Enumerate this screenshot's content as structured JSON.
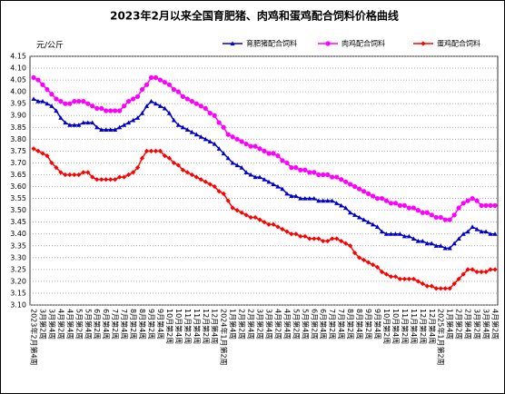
{
  "chart_data": {
    "type": "line",
    "title": "2023年2月以来全国育肥猪、肉鸡和蛋鸡配合饲料价格曲线",
    "y_label": "元/公斤",
    "legend": "top-right",
    "grid": true,
    "ylim": [
      3.1,
      4.15
    ],
    "yticks": [
      {
        "value": 3.1,
        "label": "3.10"
      },
      3.15,
      {
        "value": 3.2,
        "label": "3.20"
      },
      3.25,
      {
        "value": 3.3,
        "label": "3.30"
      },
      3.35,
      {
        "value": 3.4,
        "label": "3.40"
      },
      3.45,
      {
        "value": 3.5,
        "label": "3.50"
      },
      3.55,
      {
        "value": 3.6,
        "label": "3.60"
      },
      3.65,
      {
        "value": 3.7,
        "label": "3.70"
      },
      3.75,
      {
        "value": 3.8,
        "label": "3.80"
      },
      3.85,
      {
        "value": 3.9,
        "label": "3.90"
      },
      3.95,
      {
        "value": 4.0,
        "label": "4.00"
      },
      4.05,
      {
        "value": 4.1,
        "label": "4.10"
      },
      4.15
    ],
    "categories": [
      "2023年2月第4周",
      null,
      "3月第2周",
      null,
      "3月第4周",
      null,
      "4月第2周",
      null,
      "4月第4周",
      null,
      "5月第2周",
      null,
      "5月第4周",
      null,
      "6月第2周",
      null,
      "6月第4周",
      null,
      "7月第2周",
      null,
      "7月第4周",
      null,
      "8月第2周",
      null,
      "8月第4周",
      null,
      "9月第2周",
      null,
      "9月第4周",
      null,
      "10月第2周",
      null,
      "10月第4周",
      null,
      "11月第2周",
      null,
      "11月第4周",
      null,
      "12月第2周",
      null,
      "12月第4周",
      null,
      "2024年1月第2周",
      null,
      "1月第4周",
      null,
      "2月第2周",
      null,
      "2月第4周",
      null,
      "3月第2周",
      null,
      "3月第4周",
      null,
      "4月第2周",
      null,
      "4月第4周",
      null,
      "5月第2周",
      null,
      "5月第4周",
      null,
      "6月第2周",
      null,
      "6月第4周",
      null,
      "7月第2周",
      null,
      "7月第4周",
      null,
      "8月第2周",
      null,
      "8月第4周",
      null,
      "9月第2周",
      null,
      "9月第4周",
      null,
      "10月第2周",
      null,
      "10月第4周",
      null,
      "11月第2周",
      null,
      "11月第4周",
      null,
      "12月第2周",
      null,
      "12月第4周",
      null,
      "2025年1月第2周",
      null,
      "1月第4周",
      null,
      "2月第2周",
      null,
      "2月第4周",
      null,
      "3月第2周",
      null,
      "3月第4周",
      null,
      "4月第2周"
    ],
    "series": [
      {
        "name": "育肥猪配合饲料",
        "color": "#0000cc",
        "marker": "triangle",
        "values": [
          3.97,
          3.96,
          3.96,
          3.95,
          3.94,
          3.92,
          3.89,
          3.87,
          3.86,
          3.86,
          3.86,
          3.87,
          3.87,
          3.87,
          3.85,
          3.84,
          3.84,
          3.84,
          3.84,
          3.85,
          3.86,
          3.87,
          3.88,
          3.89,
          3.91,
          3.94,
          3.96,
          3.95,
          3.94,
          3.93,
          3.91,
          3.88,
          3.86,
          3.85,
          3.84,
          3.83,
          3.82,
          3.81,
          3.8,
          3.79,
          3.78,
          3.76,
          3.74,
          3.72,
          3.7,
          3.69,
          3.68,
          3.66,
          3.65,
          3.64,
          3.64,
          3.63,
          3.62,
          3.61,
          3.6,
          3.59,
          3.57,
          3.56,
          3.56,
          3.55,
          3.55,
          3.55,
          3.55,
          3.54,
          3.54,
          3.54,
          3.54,
          3.53,
          3.52,
          3.51,
          3.49,
          3.48,
          3.47,
          3.46,
          3.45,
          3.44,
          3.43,
          3.41,
          3.4,
          3.4,
          3.4,
          3.4,
          3.39,
          3.39,
          3.38,
          3.37,
          3.37,
          3.36,
          3.36,
          3.35,
          3.35,
          3.34,
          3.34,
          3.36,
          3.38,
          3.4,
          3.41,
          3.43,
          3.42,
          3.41,
          3.41,
          3.4,
          3.4
        ]
      },
      {
        "name": "肉鸡配合饲料",
        "color": "#ff00ff",
        "marker": "circle",
        "values": [
          4.06,
          4.05,
          4.03,
          4.01,
          3.99,
          3.97,
          3.96,
          3.95,
          3.95,
          3.96,
          3.96,
          3.96,
          3.95,
          3.94,
          3.93,
          3.93,
          3.92,
          3.92,
          3.92,
          3.92,
          3.94,
          3.96,
          3.97,
          3.98,
          4.01,
          4.03,
          4.06,
          4.06,
          4.05,
          4.04,
          4.03,
          4.01,
          4.0,
          3.98,
          3.97,
          3.96,
          3.95,
          3.94,
          3.93,
          3.91,
          3.9,
          3.87,
          3.85,
          3.82,
          3.81,
          3.8,
          3.79,
          3.78,
          3.77,
          3.77,
          3.76,
          3.75,
          3.74,
          3.74,
          3.73,
          3.71,
          3.7,
          3.68,
          3.68,
          3.67,
          3.67,
          3.66,
          3.66,
          3.65,
          3.65,
          3.65,
          3.64,
          3.64,
          3.63,
          3.62,
          3.61,
          3.6,
          3.59,
          3.58,
          3.57,
          3.56,
          3.55,
          3.55,
          3.54,
          3.53,
          3.53,
          3.52,
          3.52,
          3.51,
          3.51,
          3.5,
          3.49,
          3.49,
          3.48,
          3.47,
          3.47,
          3.46,
          3.46,
          3.48,
          3.51,
          3.53,
          3.54,
          3.55,
          3.54,
          3.52,
          3.52,
          3.52,
          3.52
        ]
      },
      {
        "name": "蛋鸡配合饲料",
        "color": "#ff0000",
        "marker": "diamond",
        "values": [
          3.76,
          3.75,
          3.74,
          3.73,
          3.7,
          3.68,
          3.66,
          3.65,
          3.65,
          3.65,
          3.65,
          3.66,
          3.66,
          3.64,
          3.63,
          3.63,
          3.63,
          3.63,
          3.63,
          3.64,
          3.64,
          3.65,
          3.66,
          3.68,
          3.72,
          3.75,
          3.75,
          3.75,
          3.75,
          3.73,
          3.72,
          3.7,
          3.69,
          3.67,
          3.66,
          3.65,
          3.64,
          3.63,
          3.62,
          3.61,
          3.6,
          3.58,
          3.57,
          3.54,
          3.51,
          3.5,
          3.49,
          3.48,
          3.47,
          3.47,
          3.46,
          3.45,
          3.44,
          3.44,
          3.43,
          3.42,
          3.41,
          3.4,
          3.4,
          3.39,
          3.39,
          3.38,
          3.38,
          3.38,
          3.37,
          3.37,
          3.38,
          3.38,
          3.37,
          3.36,
          3.35,
          3.32,
          3.3,
          3.29,
          3.28,
          3.27,
          3.26,
          3.24,
          3.23,
          3.22,
          3.22,
          3.21,
          3.21,
          3.21,
          3.21,
          3.2,
          3.19,
          3.18,
          3.18,
          3.17,
          3.17,
          3.17,
          3.17,
          3.19,
          3.21,
          3.23,
          3.25,
          3.25,
          3.24,
          3.24,
          3.24,
          3.25,
          3.25
        ]
      }
    ]
  }
}
